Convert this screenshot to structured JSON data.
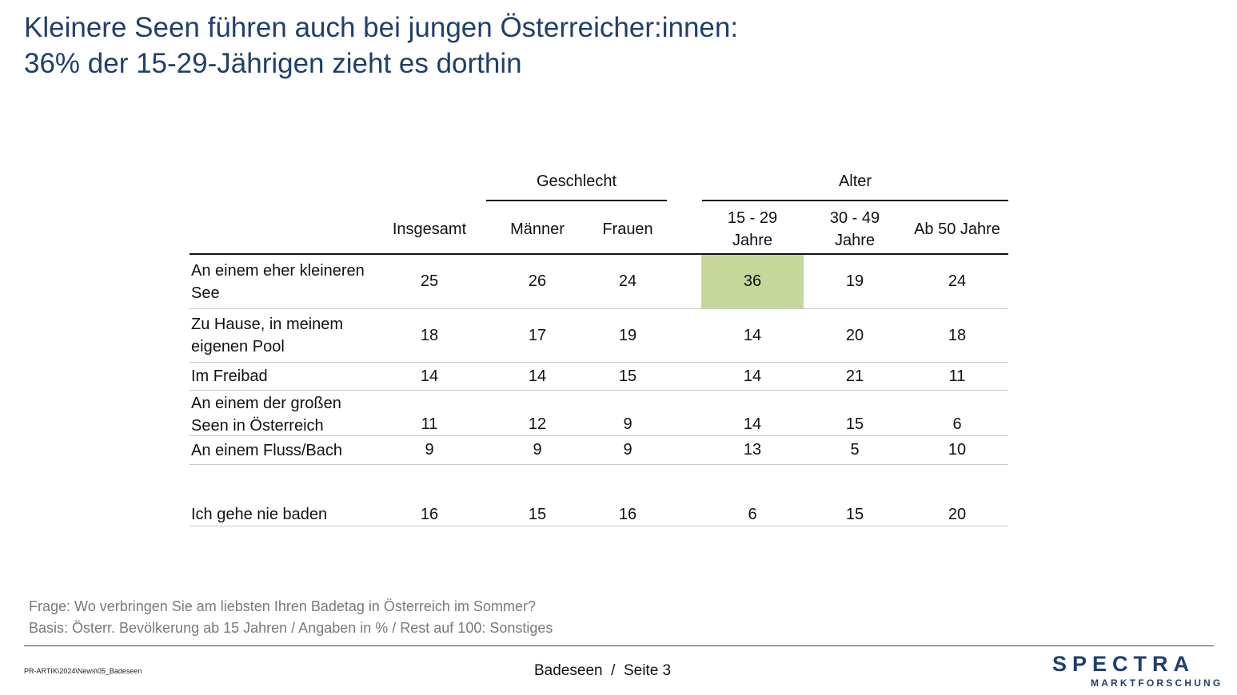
{
  "title": {
    "line1": "Kleinere Seen führen auch bei jungen Österreicher:innen:",
    "line2": "36% der 15-29-Jährigen zieht es dorthin"
  },
  "chart_data": {
    "type": "table",
    "column_groups": [
      {
        "label": "Geschlecht",
        "columns": [
          1,
          2
        ]
      },
      {
        "label": "Alter",
        "columns": [
          3,
          4,
          5
        ]
      }
    ],
    "columns": [
      "Insgesamt",
      "Männer",
      "Frauen",
      "15 - 29 Jahre",
      "30 - 49 Jahre",
      "Ab 50 Jahre"
    ],
    "rows": [
      {
        "label": "An einem eher kleineren See",
        "values": [
          25,
          26,
          24,
          36,
          19,
          24
        ]
      },
      {
        "label": "Zu Hause, in meinem eigenen Pool",
        "values": [
          18,
          17,
          19,
          14,
          20,
          18
        ]
      },
      {
        "label": "Im Freibad",
        "values": [
          14,
          14,
          15,
          14,
          21,
          11
        ]
      },
      {
        "label": "An einem der großen Seen in Österreich",
        "values": [
          11,
          12,
          9,
          14,
          15,
          6
        ]
      },
      {
        "label": "An einem Fluss/Bach",
        "values": [
          9,
          9,
          9,
          13,
          5,
          10
        ]
      },
      {
        "label": "Ich gehe nie baden",
        "values": [
          16,
          15,
          16,
          6,
          15,
          20
        ]
      }
    ],
    "highlight": {
      "row": 0,
      "column": 3,
      "color": "#c5d89a"
    }
  },
  "notes": {
    "question": "Frage: Wo verbringen Sie am liebsten Ihren Badetag in Österreich im Sommer?",
    "basis": "Basis: Österr. Bevölkerung ab 15 Jahren / Angaben in % / Rest auf 100: Sonstiges"
  },
  "footer": {
    "path": "PR-ARTIK\\2024\\News\\05_Badeseen",
    "page": "Badeseen  /  Seite 3"
  },
  "logo": {
    "brand": "SPECTRA",
    "sub": "MARKTFORSCHUNG"
  },
  "colors": {
    "title": "#1f3f6e",
    "highlight": "#c5d89a",
    "notes": "#7a7a7a"
  }
}
